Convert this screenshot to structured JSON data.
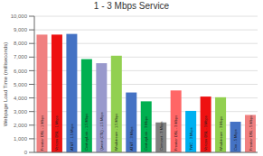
{
  "chart_data": {
    "type": "bar",
    "title": "1 - 3 Mbps Service",
    "ylabel": "Webpage Load Time (milliseconds)",
    "categories": [
      "Frontier DSL - 1 Mbps",
      "Verizon DSL - 1 Mbps",
      "AT&T - 1.5 Mbps",
      "CenturyLink - 1.5 Mbps",
      "Qwest (CTL) - 1.5 Mbps",
      "Windstream - 1.5 Mbps",
      "AT&T - 3 Mbps",
      "CenturyLink - 3 Mbps",
      "Comcast - 3 Mbps",
      "Frontier DSL - 3 Mbps",
      "TWC - 3 Mbps",
      "Verizon DSL - 3 Mbps",
      "Windstream - 3 Mbps",
      "Cox - 5 Mbps",
      "Frontier DSL - 5 Mbps"
    ],
    "values": [
      8650,
      8650,
      8700,
      6850,
      6550,
      7100,
      4400,
      3750,
      2200,
      4550,
      3050,
      4100,
      4050,
      2250,
      2750
    ],
    "colors": [
      "#F08080",
      "#EE1111",
      "#4472C4",
      "#00B050",
      "#9999CC",
      "#92D050",
      "#4472C4",
      "#00B050",
      "#808080",
      "#FF6666",
      "#00B0F0",
      "#EE1111",
      "#92D050",
      "#4472C4",
      "#F08080"
    ],
    "ylim": [
      0,
      10000
    ],
    "yticks": [
      0,
      {
        "value": 1000,
        "label": "1,000"
      },
      {
        "value": 2000,
        "label": "2,000"
      },
      {
        "value": 3000,
        "label": "3,000"
      },
      {
        "value": 4000,
        "label": "4,000"
      },
      {
        "value": 5000,
        "label": "5,000"
      },
      {
        "value": 6000,
        "label": "6,000"
      },
      {
        "value": 7000,
        "label": "7,000"
      },
      {
        "value": 8000,
        "label": "8,000"
      },
      {
        "value": 9000,
        "label": "9,000"
      },
      {
        "value": 10000,
        "label": "10,000"
      }
    ],
    "grid": true,
    "tick_labels": "y"
  }
}
